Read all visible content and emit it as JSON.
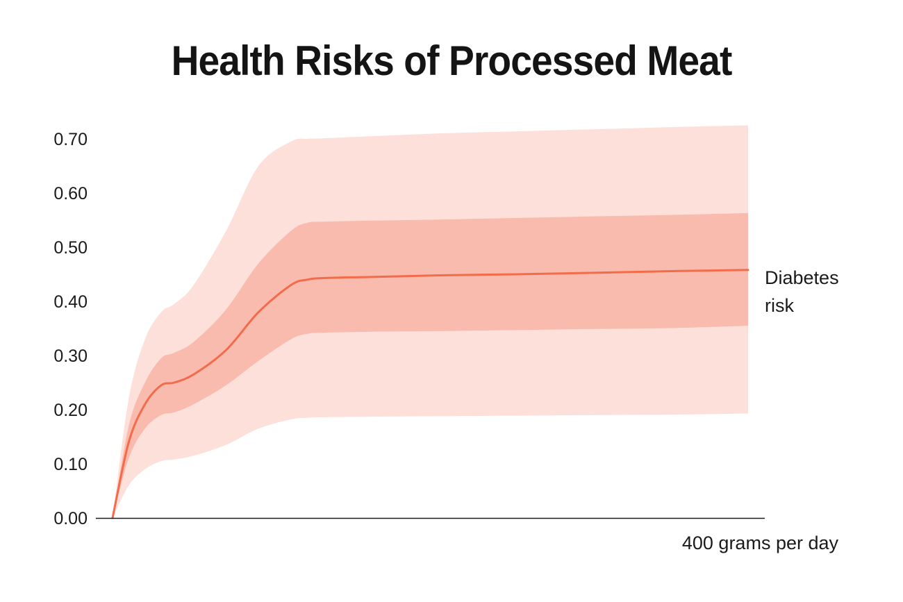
{
  "chart_data": {
    "type": "line",
    "title": "Health Risks of Processed Meat",
    "xlabel": "400 grams per day",
    "ylabel": "",
    "ylim": [
      0,
      0.7
    ],
    "xlim": [
      0,
      400
    ],
    "yticks": [
      "0.00",
      "0.10",
      "0.20",
      "0.30",
      "0.40",
      "0.50",
      "0.60",
      "0.70"
    ],
    "ytick_values": [
      0,
      0.1,
      0.2,
      0.3,
      0.4,
      0.5,
      0.6,
      0.7
    ],
    "grid": false,
    "legend": "none",
    "series": [
      {
        "name": "Diabetes risk",
        "label_lines": [
          "Diabetes",
          "risk"
        ],
        "color": "#f26b4a",
        "x": [
          0,
          10,
          20,
          30,
          38,
          50,
          70,
          90,
          110,
          120,
          130,
          160,
          200,
          250,
          300,
          350,
          392
        ],
        "y": [
          0,
          0.14,
          0.21,
          0.245,
          0.25,
          0.265,
          0.31,
          0.38,
          0.43,
          0.44,
          0.443,
          0.445,
          0.448,
          0.45,
          0.453,
          0.456,
          0.458
        ],
        "inner_band": {
          "color": "#f9bbad",
          "lower": [
            0,
            0.11,
            0.165,
            0.19,
            0.195,
            0.21,
            0.245,
            0.29,
            0.33,
            0.34,
            0.342,
            0.344,
            0.345,
            0.347,
            0.349,
            0.351,
            0.355
          ],
          "upper": [
            0,
            0.17,
            0.25,
            0.295,
            0.305,
            0.325,
            0.385,
            0.47,
            0.53,
            0.545,
            0.547,
            0.549,
            0.551,
            0.554,
            0.557,
            0.56,
            0.563
          ]
        },
        "outer_band": {
          "color": "#fde0da",
          "lower": [
            0,
            0.06,
            0.09,
            0.105,
            0.108,
            0.115,
            0.135,
            0.165,
            0.182,
            0.185,
            0.186,
            0.187,
            0.188,
            0.189,
            0.19,
            0.191,
            0.193
          ],
          "upper": [
            0,
            0.22,
            0.33,
            0.38,
            0.395,
            0.43,
            0.53,
            0.65,
            0.695,
            0.7,
            0.701,
            0.705,
            0.71,
            0.714,
            0.718,
            0.722,
            0.725
          ]
        }
      }
    ]
  }
}
